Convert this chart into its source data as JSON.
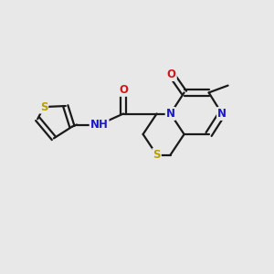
{
  "background_color": "#e8e8e8",
  "bond_color": "#1a1a1a",
  "atom_colors": {
    "S": "#b8a000",
    "N": "#1a1acc",
    "O": "#cc1a1a",
    "C": "#1a1a1a"
  },
  "figsize": [
    3.0,
    3.0
  ],
  "dpi": 100
}
